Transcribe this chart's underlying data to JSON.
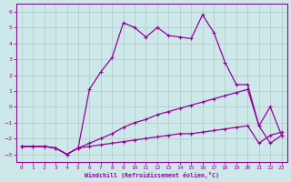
{
  "xlabel": "Windchill (Refroidissement éolien,°C)",
  "bg_color": "#cde8e8",
  "line_color": "#990099",
  "grid_color": "#b0c8c8",
  "xlim": [
    -0.5,
    23.5
  ],
  "ylim": [
    -3.5,
    6.5
  ],
  "yticks": [
    -3,
    -2,
    -1,
    0,
    1,
    2,
    3,
    4,
    5,
    6
  ],
  "xticks": [
    0,
    1,
    2,
    3,
    4,
    5,
    6,
    7,
    8,
    9,
    10,
    11,
    12,
    13,
    14,
    15,
    16,
    17,
    18,
    19,
    20,
    21,
    22,
    23
  ],
  "curve_top_x": [
    0,
    1,
    2,
    3,
    4,
    5,
    6,
    7,
    8,
    9,
    10,
    11,
    12,
    13,
    14,
    15,
    16,
    17,
    18,
    19,
    20,
    21,
    22,
    23
  ],
  "curve_top_y": [
    -2.5,
    -2.5,
    -2.5,
    -2.6,
    -3.0,
    -2.6,
    1.1,
    2.2,
    3.1,
    5.3,
    5.0,
    4.4,
    5.0,
    4.5,
    4.4,
    4.3,
    5.8,
    4.7,
    2.8,
    1.4,
    1.4,
    -1.2,
    -2.3,
    -1.8
  ],
  "curve_mid_x": [
    0,
    1,
    2,
    3,
    4,
    5,
    6,
    7,
    8,
    9,
    10,
    11,
    12,
    13,
    14,
    15,
    16,
    17,
    18,
    19,
    20,
    21,
    22,
    23
  ],
  "curve_mid_y": [
    -2.5,
    -2.5,
    -2.5,
    -2.6,
    -3.0,
    -2.6,
    -2.3,
    -2.0,
    -1.7,
    -1.3,
    -1.0,
    -0.8,
    -0.5,
    -0.3,
    -0.1,
    0.1,
    0.3,
    0.5,
    0.7,
    0.9,
    1.1,
    -1.2,
    0.0,
    -1.8
  ],
  "curve_bot_x": [
    0,
    1,
    2,
    3,
    4,
    5,
    6,
    7,
    8,
    9,
    10,
    11,
    12,
    13,
    14,
    15,
    16,
    17,
    18,
    19,
    20,
    21,
    22,
    23
  ],
  "curve_bot_y": [
    -2.5,
    -2.5,
    -2.5,
    -2.6,
    -3.0,
    -2.6,
    -2.5,
    -2.4,
    -2.3,
    -2.2,
    -2.1,
    -2.0,
    -1.9,
    -1.8,
    -1.7,
    -1.7,
    -1.6,
    -1.5,
    -1.4,
    -1.3,
    -1.2,
    -2.3,
    -1.8,
    -1.6
  ]
}
